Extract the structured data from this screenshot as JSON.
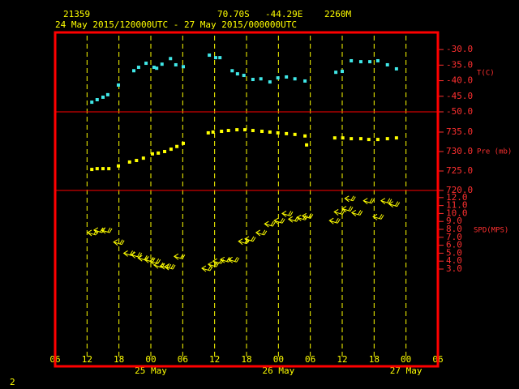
{
  "header": {
    "station": "21359",
    "latitude": "70.70S",
    "longitude": "-44.29E",
    "elevation": "2260M",
    "period": "24 May 2015/120000UTC - 27 May 2015/000000UTC"
  },
  "page_number": "2",
  "x_axis": {
    "xlim": [
      6,
      78
    ],
    "xticks": [
      {
        "value": 6,
        "label": "06"
      },
      {
        "value": 12,
        "label": "12"
      },
      {
        "value": 18,
        "label": "18"
      },
      {
        "value": 24,
        "label": "00"
      },
      {
        "value": 30,
        "label": "06"
      },
      {
        "value": 36,
        "label": "12"
      },
      {
        "value": 42,
        "label": "18"
      },
      {
        "value": 48,
        "label": "00"
      },
      {
        "value": 54,
        "label": "06"
      },
      {
        "value": 60,
        "label": "12"
      },
      {
        "value": 66,
        "label": "18"
      },
      {
        "value": 72,
        "label": "00"
      },
      {
        "value": 78,
        "label": "06"
      }
    ],
    "day_labels": [
      {
        "value": 24,
        "label": "25 May"
      },
      {
        "value": 48,
        "label": "26 May"
      },
      {
        "value": 72,
        "label": "27 May"
      }
    ],
    "grid": true,
    "grid_color": "#ffff00"
  },
  "chart_data": [
    {
      "type": "scatter",
      "ylabel": "T(C)",
      "marker": "square",
      "color": "#40e8e8",
      "xlim": [
        6,
        78
      ],
      "ylim": [
        -50,
        -24.5
      ],
      "yticks": [
        {
          "value": -30,
          "label": "-30.0"
        },
        {
          "value": -35,
          "label": "-35.0"
        },
        {
          "value": -40,
          "label": "-40.0"
        },
        {
          "value": -45,
          "label": "-45.0"
        },
        {
          "value": -50,
          "label": "-50.0"
        }
      ],
      "x": [
        12.9,
        13.9,
        15,
        15.9,
        17.9,
        20.8,
        21.7,
        23.1,
        24.6,
        25.1,
        26.1,
        27.7,
        28.7,
        30.1,
        35,
        36.2,
        37,
        39.3,
        40.3,
        41.5,
        43.2,
        44.7,
        46.4,
        47.9,
        49.5,
        51.1,
        53,
        58.8,
        60,
        61.7,
        63.5,
        65.2,
        66.7,
        68.5,
        70.2
      ],
      "values": [
        -46.9,
        -46.1,
        -45.3,
        -44.5,
        -41.4,
        -36.8,
        -35.7,
        -34.4,
        -35.7,
        -36,
        -34.7,
        -32.9,
        -34.9,
        -35.5,
        -31.8,
        -32.6,
        -32.6,
        -36.8,
        -37.8,
        -38.3,
        -39.6,
        -39.4,
        -40.4,
        -39.1,
        -38.8,
        -39.4,
        -40.1,
        -37.3,
        -37,
        -33.6,
        -33.9,
        -33.9,
        -33.6,
        -34.9,
        -36.2
      ]
    },
    {
      "type": "scatter",
      "ylabel": "Pre (mb)",
      "marker": "square",
      "color": "#ffff00",
      "xlim": [
        6,
        78
      ],
      "ylim": [
        720,
        740.2
      ],
      "yticks": [
        {
          "value": 735,
          "label": "735.0"
        },
        {
          "value": 730,
          "label": "730.0"
        },
        {
          "value": 725,
          "label": "725.0"
        },
        {
          "value": 720,
          "label": "720.0"
        }
      ],
      "x": [
        12.9,
        13.9,
        15,
        16.1,
        17.9,
        20,
        21.3,
        22.6,
        24.3,
        25.4,
        26.6,
        27.8,
        28.9,
        30.1,
        34.8,
        35.7,
        37.3,
        38.6,
        40.2,
        41.7,
        43.2,
        44.9,
        46.4,
        47.9,
        49.5,
        51.1,
        53,
        53.3,
        58.6,
        60.1,
        61.7,
        63.5,
        65,
        66.7,
        68.5,
        70.2
      ],
      "values": [
        725.4,
        725.6,
        725.6,
        725.6,
        726.3,
        727.3,
        727.7,
        728.3,
        729.4,
        729.6,
        730,
        730.6,
        731.3,
        732.1,
        734.8,
        735,
        735.2,
        735.4,
        735.6,
        735.6,
        735.4,
        735.2,
        735,
        734.8,
        734.6,
        734.4,
        734,
        731.7,
        733.5,
        733.5,
        733.3,
        733.3,
        733.1,
        733.1,
        733.3,
        733.5
      ]
    },
    {
      "type": "scatter",
      "ylabel": "SPD(MPS)",
      "marker": "arrow",
      "color": "#ffff00",
      "xlim": [
        6,
        78
      ],
      "ylim": [
        3,
        12.9
      ],
      "yticks": [
        {
          "value": 12,
          "label": "12.0"
        },
        {
          "value": 11,
          "label": "11.0"
        },
        {
          "value": 10,
          "label": "10.0"
        },
        {
          "value": 9,
          "label": "9.0"
        },
        {
          "value": 8,
          "label": "8.0"
        },
        {
          "value": 7,
          "label": "7.0"
        },
        {
          "value": 6,
          "label": "6.0"
        },
        {
          "value": 5,
          "label": "5.0"
        },
        {
          "value": 4,
          "label": "4.0"
        },
        {
          "value": 3,
          "label": "3.0"
        }
      ],
      "x": [
        12.1,
        13.3,
        14.7,
        17,
        18.9,
        20.3,
        21.6,
        22.8,
        23.8,
        24.6,
        25.8,
        26.6,
        28.4,
        33.6,
        34.8,
        35.7,
        37.1,
        38.6,
        40.5,
        41.7,
        43.8,
        45.4,
        47.2,
        48.7,
        49.9,
        51.5,
        52.5,
        57.6,
        58.5,
        60,
        60.5,
        61.8,
        64,
        65.8,
        67.3,
        68.8
      ],
      "values": [
        7.6,
        7.9,
        7.9,
        6.4,
        5,
        4.8,
        4.4,
        4.2,
        4,
        3.5,
        3.4,
        3.3,
        4.6,
        3.1,
        3.6,
        4,
        4.2,
        4.2,
        6.5,
        6.8,
        7.6,
        8.7,
        9.1,
        10,
        9.3,
        9.5,
        9.7,
        9.1,
        10.2,
        10.6,
        11.9,
        10.1,
        11.6,
        9.6,
        11.6,
        11.2
      ]
    }
  ]
}
